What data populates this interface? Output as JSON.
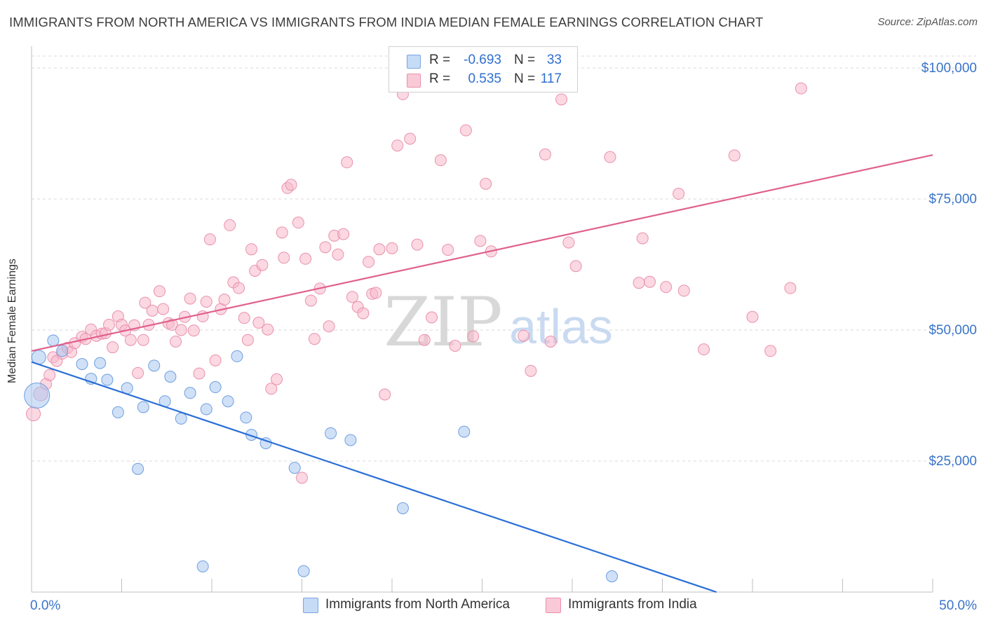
{
  "title": "IMMIGRANTS FROM NORTH AMERICA VS IMMIGRANTS FROM INDIA MEDIAN FEMALE EARNINGS CORRELATION CHART",
  "source": "Source: ZipAtlas.com",
  "watermark": {
    "zip": "ZIP",
    "atlas": "atlas"
  },
  "colors": {
    "blue_fill": "#a9c8f0",
    "blue_stroke": "#6c9ee0",
    "blue_line": "#2a6fd6",
    "pink_fill": "#f7b8cb",
    "pink_stroke": "#e991ad",
    "pink_line": "#e0608d",
    "axis_text": "#3a74c9",
    "grid": "#d9d9d9"
  },
  "legend": {
    "rows": [
      {
        "r_label": "R =",
        "r_value": "-0.693",
        "n_label": "N =",
        "n_value": "33",
        "color": "blue"
      },
      {
        "r_label": "R =",
        "r_value": "0.535",
        "n_label": "N =",
        "n_value": "117",
        "color": "pink"
      }
    ]
  },
  "bottom_legend": [
    {
      "label": "Immigrants from North America",
      "color": "blue"
    },
    {
      "label": "Immigrants from India",
      "color": "pink"
    }
  ],
  "chart_data": {
    "type": "scatter",
    "title": "IMMIGRANTS FROM NORTH AMERICA VS IMMIGRANTS FROM INDIA MEDIAN FEMALE EARNINGS CORRELATION CHART",
    "xlabel": "",
    "ylabel": "Median Female Earnings",
    "xlim": [
      0,
      50
    ],
    "ylim": [
      0,
      100000
    ],
    "x_tick_labels": [
      "0.0%",
      "50.0%"
    ],
    "y_ticks": [
      25000,
      50000,
      75000,
      100000
    ],
    "y_tick_labels": [
      "$25,000",
      "$50,000",
      "$75,000",
      "$100,000"
    ],
    "grid": true,
    "legend_position": "top-center",
    "series": [
      {
        "name": "Immigrants from North America",
        "color": "blue",
        "R": -0.693,
        "N": 33,
        "trend": {
          "x": [
            0,
            38
          ],
          "y": [
            43900,
            0
          ]
        },
        "points": [
          [
            0.3,
            37500,
            18
          ],
          [
            0.4,
            44800,
            10
          ],
          [
            1.2,
            48000,
            8
          ],
          [
            1.7,
            46000,
            8
          ],
          [
            2.8,
            43500,
            8
          ],
          [
            3.3,
            40700,
            8
          ],
          [
            3.8,
            43700,
            8
          ],
          [
            4.2,
            40500,
            8
          ],
          [
            4.8,
            34300,
            8
          ],
          [
            5.3,
            38900,
            8
          ],
          [
            5.9,
            23500,
            8
          ],
          [
            6.2,
            35300,
            8
          ],
          [
            6.8,
            43200,
            8
          ],
          [
            7.4,
            36400,
            8
          ],
          [
            7.7,
            41100,
            8
          ],
          [
            8.3,
            33100,
            8
          ],
          [
            8.8,
            38000,
            8
          ],
          [
            9.5,
            4900,
            8
          ],
          [
            9.7,
            34900,
            8
          ],
          [
            10.2,
            39100,
            8
          ],
          [
            10.9,
            36400,
            8
          ],
          [
            11.4,
            45000,
            8
          ],
          [
            11.9,
            33300,
            8
          ],
          [
            12.2,
            30000,
            8
          ],
          [
            13.0,
            28400,
            8
          ],
          [
            14.6,
            23700,
            8
          ],
          [
            15.1,
            4000,
            8
          ],
          [
            16.6,
            30300,
            8
          ],
          [
            17.7,
            29000,
            8
          ],
          [
            20.6,
            16000,
            8
          ],
          [
            24.0,
            30600,
            8
          ],
          [
            32.2,
            3000,
            8
          ]
        ]
      },
      {
        "name": "Immigrants from India",
        "color": "pink",
        "R": 0.535,
        "N": 117,
        "trend": {
          "x": [
            0,
            50
          ],
          "y": [
            46000,
            83400
          ]
        },
        "points": [
          [
            0.1,
            34000,
            10
          ],
          [
            0.5,
            37800,
            10
          ],
          [
            0.8,
            39700,
            8
          ],
          [
            1.0,
            41400,
            8
          ],
          [
            1.2,
            44800,
            8
          ],
          [
            1.4,
            44100,
            8
          ],
          [
            1.7,
            45500,
            8
          ],
          [
            2.0,
            46600,
            8
          ],
          [
            2.2,
            45800,
            8
          ],
          [
            2.4,
            47500,
            8
          ],
          [
            2.8,
            48700,
            8
          ],
          [
            3.0,
            48300,
            8
          ],
          [
            3.3,
            50100,
            8
          ],
          [
            3.6,
            48900,
            8
          ],
          [
            3.9,
            49300,
            8
          ],
          [
            4.1,
            49400,
            8
          ],
          [
            4.3,
            51000,
            8
          ],
          [
            4.5,
            46700,
            8
          ],
          [
            4.8,
            52600,
            8
          ],
          [
            5.0,
            51000,
            8
          ],
          [
            5.2,
            49900,
            8
          ],
          [
            5.5,
            48100,
            8
          ],
          [
            5.7,
            50900,
            8
          ],
          [
            5.9,
            41800,
            8
          ],
          [
            6.2,
            48100,
            8
          ],
          [
            6.3,
            55200,
            8
          ],
          [
            6.5,
            51000,
            8
          ],
          [
            6.7,
            53700,
            8
          ],
          [
            7.1,
            57400,
            8
          ],
          [
            7.3,
            54000,
            8
          ],
          [
            7.6,
            51300,
            8
          ],
          [
            7.8,
            51000,
            8
          ],
          [
            8.0,
            47800,
            8
          ],
          [
            8.3,
            50000,
            8
          ],
          [
            8.5,
            52500,
            8
          ],
          [
            8.8,
            56000,
            8
          ],
          [
            9.0,
            49900,
            8
          ],
          [
            9.3,
            41700,
            8
          ],
          [
            9.5,
            52600,
            8
          ],
          [
            9.7,
            55400,
            8
          ],
          [
            9.9,
            67300,
            8
          ],
          [
            10.2,
            44200,
            8
          ],
          [
            10.5,
            54000,
            8
          ],
          [
            10.7,
            55800,
            8
          ],
          [
            11.0,
            70000,
            8
          ],
          [
            11.2,
            59100,
            8
          ],
          [
            11.5,
            58000,
            8
          ],
          [
            11.8,
            52300,
            8
          ],
          [
            12.0,
            48100,
            8
          ],
          [
            12.2,
            65400,
            8
          ],
          [
            12.4,
            61300,
            8
          ],
          [
            12.6,
            51400,
            8
          ],
          [
            12.8,
            62400,
            8
          ],
          [
            13.1,
            50100,
            8
          ],
          [
            13.3,
            38800,
            8
          ],
          [
            13.6,
            40600,
            8
          ],
          [
            13.9,
            68600,
            8
          ],
          [
            14.0,
            63800,
            8
          ],
          [
            14.2,
            77100,
            8
          ],
          [
            14.4,
            77700,
            8
          ],
          [
            14.8,
            70500,
            8
          ],
          [
            15.0,
            21800,
            8
          ],
          [
            15.2,
            63600,
            8
          ],
          [
            15.5,
            55600,
            8
          ],
          [
            15.7,
            48300,
            8
          ],
          [
            16.0,
            57900,
            8
          ],
          [
            16.3,
            65800,
            8
          ],
          [
            16.5,
            50700,
            8
          ],
          [
            16.8,
            68000,
            8
          ],
          [
            17.0,
            64400,
            8
          ],
          [
            17.3,
            68300,
            8
          ],
          [
            17.5,
            82000,
            8
          ],
          [
            17.8,
            56300,
            8
          ],
          [
            18.1,
            54400,
            8
          ],
          [
            18.4,
            53200,
            8
          ],
          [
            18.7,
            63000,
            8
          ],
          [
            18.9,
            56900,
            8
          ],
          [
            19.1,
            57100,
            8
          ],
          [
            19.3,
            65400,
            8
          ],
          [
            19.6,
            37700,
            8
          ],
          [
            20.0,
            65600,
            8
          ],
          [
            20.3,
            85200,
            8
          ],
          [
            20.6,
            95000,
            8
          ],
          [
            21.0,
            86500,
            8
          ],
          [
            21.4,
            66300,
            8
          ],
          [
            21.8,
            48100,
            8
          ],
          [
            22.2,
            52400,
            8
          ],
          [
            22.7,
            82400,
            8
          ],
          [
            23.1,
            65300,
            8
          ],
          [
            23.5,
            47000,
            8
          ],
          [
            24.1,
            88100,
            8
          ],
          [
            24.5,
            48800,
            8
          ],
          [
            24.9,
            67000,
            8
          ],
          [
            25.2,
            77900,
            8
          ],
          [
            25.5,
            65000,
            8
          ],
          [
            27.3,
            48900,
            8
          ],
          [
            27.7,
            42200,
            8
          ],
          [
            28.5,
            83500,
            8
          ],
          [
            28.8,
            47800,
            8
          ],
          [
            29.4,
            94000,
            8
          ],
          [
            29.8,
            66700,
            8
          ],
          [
            30.2,
            62200,
            8
          ],
          [
            32.1,
            83000,
            8
          ],
          [
            33.7,
            59000,
            8
          ],
          [
            33.9,
            67500,
            8
          ],
          [
            34.3,
            59200,
            8
          ],
          [
            35.2,
            58200,
            8
          ],
          [
            35.9,
            76000,
            8
          ],
          [
            36.2,
            57500,
            8
          ],
          [
            37.3,
            46300,
            8
          ],
          [
            39.0,
            83300,
            8
          ],
          [
            40.0,
            52500,
            8
          ],
          [
            41.0,
            46000,
            8
          ],
          [
            42.1,
            58000,
            8
          ],
          [
            42.7,
            96100,
            8
          ]
        ]
      }
    ]
  }
}
